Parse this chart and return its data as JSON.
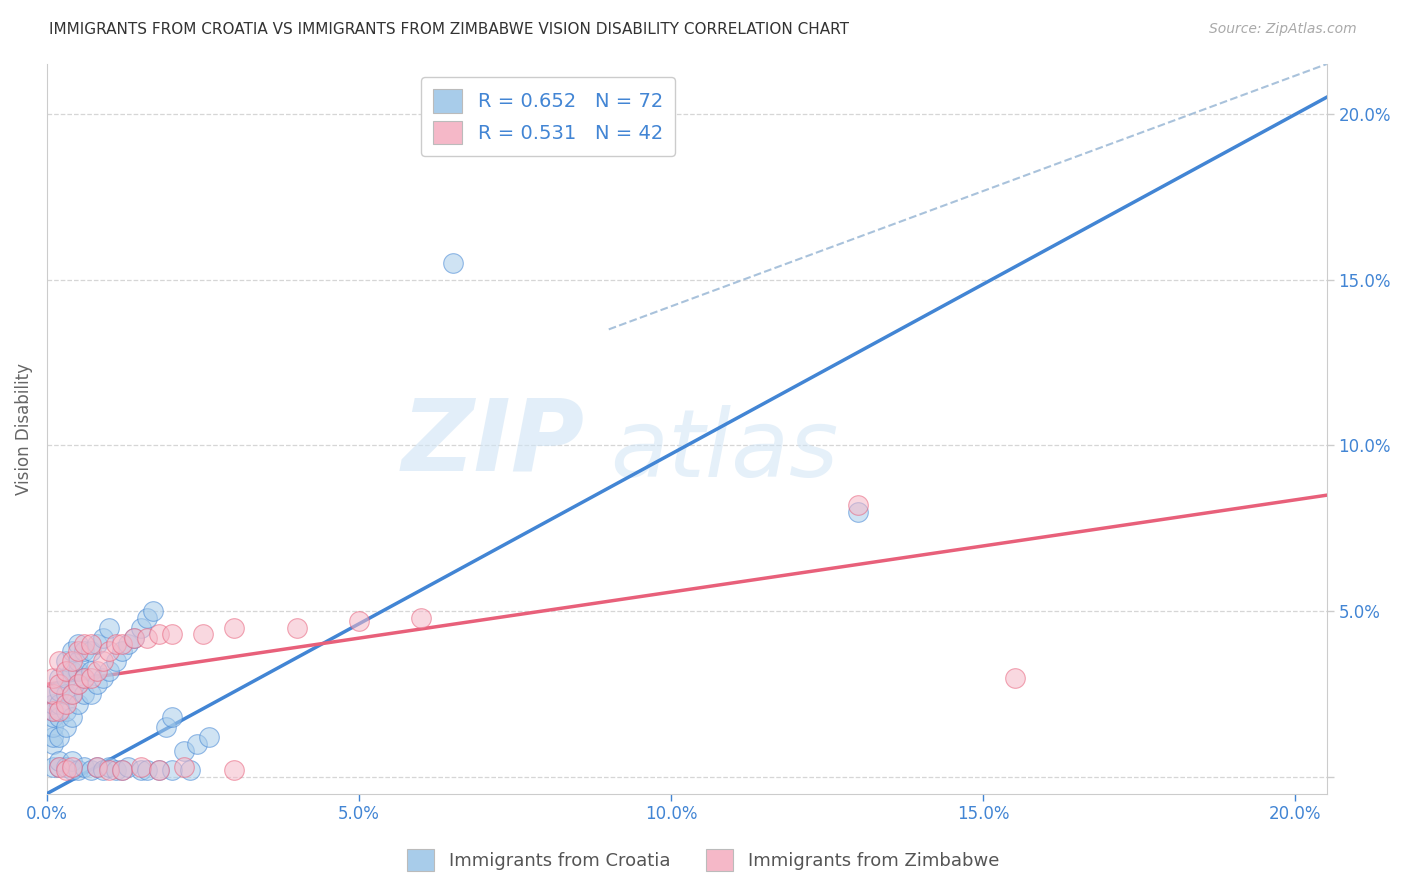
{
  "title": "IMMIGRANTS FROM CROATIA VS IMMIGRANTS FROM ZIMBABWE VISION DISABILITY CORRELATION CHART",
  "source": "Source: ZipAtlas.com",
  "ylabel": "Vision Disability",
  "xlim": [
    0.0,
    0.205
  ],
  "ylim": [
    -0.005,
    0.215
  ],
  "xticks": [
    0.0,
    0.05,
    0.1,
    0.15,
    0.2
  ],
  "yticks": [
    0.0,
    0.05,
    0.1,
    0.15,
    0.2
  ],
  "xticklabels": [
    "0.0%",
    "5.0%",
    "10.0%",
    "15.0%",
    "20.0%"
  ],
  "yticklabels_right": [
    "",
    "5.0%",
    "10.0%",
    "15.0%",
    "20.0%"
  ],
  "croatia_color": "#a8ccea",
  "zimbabwe_color": "#f5b8c8",
  "croatia_R": 0.652,
  "croatia_N": 72,
  "zimbabwe_R": 0.531,
  "zimbabwe_N": 42,
  "croatia_line_color": "#4285d4",
  "zimbabwe_line_color": "#e8607a",
  "diagonal_line_color": "#a0bcd8",
  "legend_text_color": "#4285d4",
  "watermark_text": "ZIPatlas",
  "background_color": "#ffffff",
  "grid_color": "#cccccc",
  "tick_color": "#4285d4",
  "axis_color": "#cccccc",
  "croatia_line_x0": 0.0,
  "croatia_line_y0": -0.005,
  "croatia_line_x1": 0.205,
  "croatia_line_y1": 0.205,
  "zimbabwe_line_x0": 0.0,
  "zimbabwe_line_y0": 0.028,
  "zimbabwe_line_x1": 0.205,
  "zimbabwe_line_y1": 0.085,
  "diag_line_x0": 0.09,
  "diag_line_y0": 0.135,
  "diag_line_x1": 0.205,
  "diag_line_y1": 0.215,
  "croatia_points_x": [
    0.001,
    0.001,
    0.001,
    0.001,
    0.001,
    0.001,
    0.001,
    0.002,
    0.002,
    0.002,
    0.002,
    0.002,
    0.003,
    0.003,
    0.003,
    0.003,
    0.003,
    0.004,
    0.004,
    0.004,
    0.004,
    0.005,
    0.005,
    0.005,
    0.005,
    0.005,
    0.006,
    0.006,
    0.006,
    0.007,
    0.007,
    0.007,
    0.008,
    0.008,
    0.009,
    0.009,
    0.01,
    0.01,
    0.011,
    0.012,
    0.013,
    0.014,
    0.015,
    0.016,
    0.017,
    0.019,
    0.02,
    0.022,
    0.024,
    0.026,
    0.001,
    0.002,
    0.002,
    0.003,
    0.004,
    0.004,
    0.005,
    0.006,
    0.007,
    0.008,
    0.009,
    0.01,
    0.011,
    0.012,
    0.013,
    0.015,
    0.016,
    0.018,
    0.02,
    0.023,
    0.065,
    0.13
  ],
  "croatia_points_y": [
    0.01,
    0.012,
    0.015,
    0.018,
    0.02,
    0.022,
    0.025,
    0.012,
    0.018,
    0.022,
    0.026,
    0.03,
    0.015,
    0.02,
    0.025,
    0.03,
    0.035,
    0.018,
    0.025,
    0.032,
    0.038,
    0.022,
    0.028,
    0.032,
    0.035,
    0.04,
    0.025,
    0.03,
    0.038,
    0.025,
    0.032,
    0.038,
    0.028,
    0.04,
    0.03,
    0.042,
    0.032,
    0.045,
    0.035,
    0.038,
    0.04,
    0.042,
    0.045,
    0.048,
    0.05,
    0.015,
    0.018,
    0.008,
    0.01,
    0.012,
    0.003,
    0.003,
    0.005,
    0.003,
    0.002,
    0.005,
    0.002,
    0.003,
    0.002,
    0.003,
    0.002,
    0.003,
    0.002,
    0.002,
    0.003,
    0.002,
    0.002,
    0.002,
    0.002,
    0.002,
    0.155,
    0.08
  ],
  "zimbabwe_points_x": [
    0.001,
    0.001,
    0.001,
    0.002,
    0.002,
    0.002,
    0.003,
    0.003,
    0.004,
    0.004,
    0.005,
    0.005,
    0.006,
    0.006,
    0.007,
    0.007,
    0.008,
    0.009,
    0.01,
    0.011,
    0.012,
    0.014,
    0.016,
    0.018,
    0.02,
    0.025,
    0.03,
    0.04,
    0.05,
    0.06,
    0.002,
    0.003,
    0.004,
    0.008,
    0.01,
    0.012,
    0.015,
    0.018,
    0.022,
    0.03,
    0.13,
    0.155
  ],
  "zimbabwe_points_y": [
    0.02,
    0.025,
    0.03,
    0.02,
    0.028,
    0.035,
    0.022,
    0.032,
    0.025,
    0.035,
    0.028,
    0.038,
    0.03,
    0.04,
    0.03,
    0.04,
    0.032,
    0.035,
    0.038,
    0.04,
    0.04,
    0.042,
    0.042,
    0.043,
    0.043,
    0.043,
    0.045,
    0.045,
    0.047,
    0.048,
    0.003,
    0.002,
    0.003,
    0.003,
    0.002,
    0.002,
    0.003,
    0.002,
    0.003,
    0.002,
    0.082,
    0.03
  ]
}
